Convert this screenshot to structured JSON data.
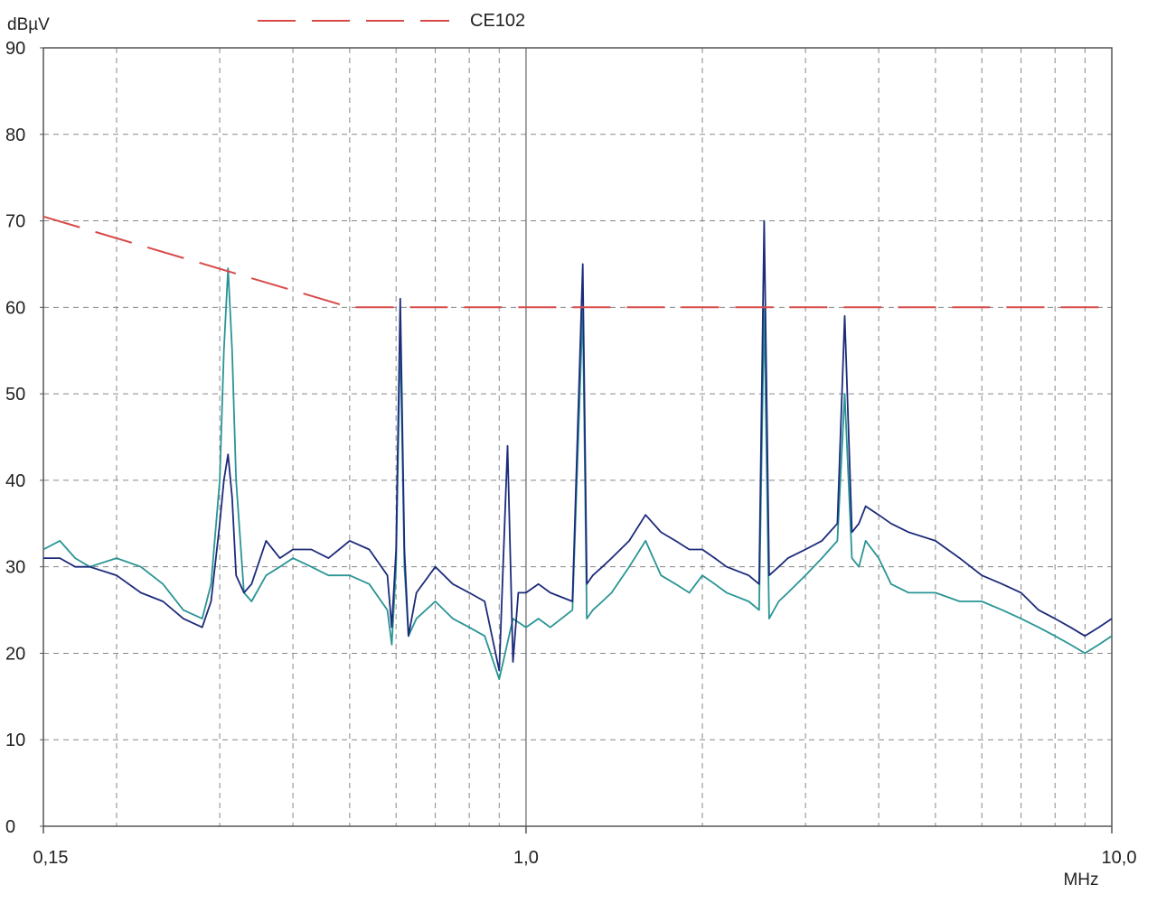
{
  "chart_data": {
    "type": "line",
    "title": "",
    "ylabel": "dBµV",
    "xlabel": "MHz",
    "x_scale": "log",
    "xlim": [
      0.15,
      10.0
    ],
    "ylim": [
      0,
      90
    ],
    "grid": true,
    "legend_position": "top-left",
    "y_ticks": [
      {
        "value": 0,
        "label": "0"
      },
      {
        "value": 10,
        "label": "10"
      },
      {
        "value": 20,
        "label": "20"
      },
      {
        "value": 30,
        "label": "30"
      },
      {
        "value": 40,
        "label": "40"
      },
      {
        "value": 50,
        "label": "50"
      },
      {
        "value": 60,
        "label": "60"
      },
      {
        "value": 70,
        "label": "70"
      },
      {
        "value": 80,
        "label": "80"
      },
      {
        "value": 90,
        "label": "90"
      }
    ],
    "x_ticks": [
      {
        "value": 0.15,
        "label": "0,15"
      },
      {
        "value": 1.0,
        "label": "1,0"
      },
      {
        "value": 10.0,
        "label": "10,0"
      }
    ],
    "x_minor_grid": [
      0.2,
      0.3,
      0.4,
      0.5,
      0.6,
      0.7,
      0.8,
      0.9,
      2,
      3,
      4,
      5,
      6,
      7,
      8,
      9
    ],
    "series": [
      {
        "name": "CE102",
        "color": "#d84a4a",
        "dashed": true,
        "x": [
          0.15,
          0.5,
          10.0
        ],
        "y": [
          70.5,
          60,
          60
        ]
      },
      {
        "color": "#2a9494",
        "x": [
          0.15,
          0.16,
          0.17,
          0.18,
          0.2,
          0.22,
          0.24,
          0.26,
          0.28,
          0.29,
          0.3,
          0.305,
          0.31,
          0.315,
          0.32,
          0.33,
          0.34,
          0.36,
          0.38,
          0.4,
          0.43,
          0.46,
          0.5,
          0.54,
          0.58,
          0.59,
          0.6,
          0.61,
          0.62,
          0.63,
          0.65,
          0.7,
          0.75,
          0.8,
          0.85,
          0.9,
          0.95,
          1.0,
          1.05,
          1.1,
          1.2,
          1.25,
          1.27,
          1.3,
          1.35,
          1.4,
          1.5,
          1.6,
          1.7,
          1.8,
          1.9,
          2.0,
          2.1,
          2.2,
          2.4,
          2.5,
          2.55,
          2.6,
          2.7,
          2.8,
          3.0,
          3.2,
          3.4,
          3.5,
          3.6,
          3.7,
          3.8,
          4.0,
          4.2,
          4.5,
          5.0,
          5.5,
          6.0,
          6.5,
          7.0,
          7.5,
          8.0,
          8.5,
          9.0,
          9.5,
          10.0
        ],
        "y": [
          32,
          33,
          31,
          30,
          31,
          30,
          28,
          25,
          24,
          28,
          40,
          55,
          64.5,
          55,
          40,
          27,
          26,
          29,
          30,
          31,
          30,
          29,
          29,
          28,
          25,
          21,
          30,
          57,
          30,
          22,
          24,
          26,
          24,
          23,
          22,
          17,
          24,
          23,
          24,
          23,
          25,
          60,
          24,
          25,
          26,
          27,
          30,
          33,
          29,
          28,
          27,
          29,
          28,
          27,
          26,
          25,
          60,
          24,
          26,
          27,
          29,
          31,
          33,
          50,
          31,
          30,
          33,
          31,
          28,
          27,
          27,
          26,
          26,
          25,
          24,
          23,
          22,
          21,
          20,
          21,
          22
        ]
      },
      {
        "color": "#1c2b7a",
        "x": [
          0.15,
          0.16,
          0.17,
          0.18,
          0.2,
          0.22,
          0.24,
          0.26,
          0.28,
          0.29,
          0.3,
          0.305,
          0.31,
          0.315,
          0.32,
          0.33,
          0.34,
          0.36,
          0.38,
          0.4,
          0.43,
          0.46,
          0.5,
          0.54,
          0.58,
          0.59,
          0.6,
          0.61,
          0.62,
          0.63,
          0.65,
          0.7,
          0.75,
          0.8,
          0.85,
          0.9,
          0.93,
          0.95,
          0.97,
          1.0,
          1.05,
          1.1,
          1.2,
          1.25,
          1.27,
          1.3,
          1.35,
          1.4,
          1.5,
          1.6,
          1.7,
          1.8,
          1.9,
          2.0,
          2.1,
          2.2,
          2.4,
          2.5,
          2.55,
          2.6,
          2.7,
          2.8,
          3.0,
          3.2,
          3.4,
          3.5,
          3.6,
          3.7,
          3.8,
          4.0,
          4.2,
          4.5,
          5.0,
          5.5,
          6.0,
          6.5,
          7.0,
          7.5,
          8.0,
          8.5,
          9.0,
          9.5,
          10.0
        ],
        "y": [
          31,
          31,
          30,
          30,
          29,
          27,
          26,
          24,
          23,
          26,
          35,
          40,
          43,
          38,
          29,
          27,
          28,
          33,
          31,
          32,
          32,
          31,
          33,
          32,
          29,
          23,
          32,
          61,
          32,
          22,
          27,
          30,
          28,
          27,
          26,
          18,
          44,
          19,
          27,
          27,
          28,
          27,
          26,
          65,
          28,
          29,
          30,
          31,
          33,
          36,
          34,
          33,
          32,
          32,
          31,
          30,
          29,
          28,
          70,
          29,
          30,
          31,
          32,
          33,
          35,
          59,
          34,
          35,
          37,
          36,
          35,
          34,
          33,
          31,
          29,
          28,
          27,
          25,
          24,
          23,
          22,
          23,
          24
        ]
      }
    ]
  }
}
